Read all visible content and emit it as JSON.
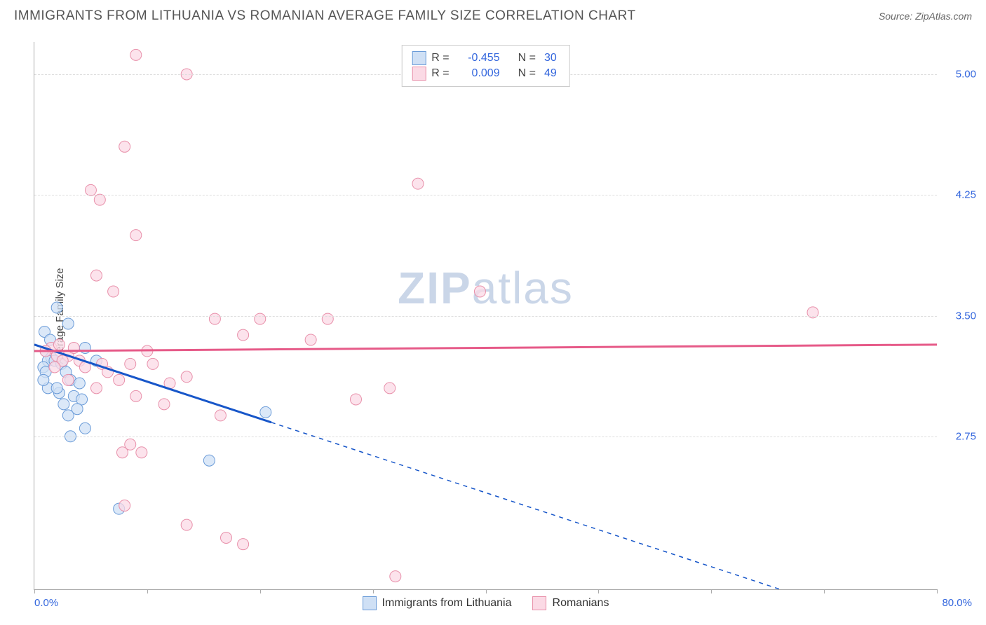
{
  "header": {
    "title": "IMMIGRANTS FROM LITHUANIA VS ROMANIAN AVERAGE FAMILY SIZE CORRELATION CHART",
    "source": "Source: ZipAtlas.com"
  },
  "watermark": {
    "part1": "ZIP",
    "part2": "atlas"
  },
  "chart": {
    "type": "scatter",
    "x_axis": {
      "min_label": "0.0%",
      "max_label": "80.0%",
      "min": 0,
      "max": 80,
      "tick_positions_pct": [
        0,
        12.5,
        25,
        37.5,
        50,
        62.5,
        75,
        87.5,
        100
      ],
      "axis_color": "#aaaaaa"
    },
    "y_axis": {
      "title": "Average Family Size",
      "min": 1.8,
      "max": 5.2,
      "ticks": [
        2.75,
        3.5,
        4.25,
        5.0
      ],
      "label_color": "#3366dd",
      "axis_color": "#aaaaaa",
      "grid_color": "#dddddd"
    },
    "series": [
      {
        "name": "Immigrants from Lithuania",
        "marker_fill": "#cfe0f5",
        "marker_stroke": "#6a9bd8",
        "trend_color": "#1756c9",
        "trend_solid_xmax": 21,
        "trend_y_start": 3.32,
        "trend_y_end_at80": 1.48,
        "r": "-0.455",
        "n": "30",
        "marker_radius": 8,
        "points": [
          [
            2.0,
            3.55
          ],
          [
            3.0,
            3.45
          ],
          [
            4.5,
            3.3
          ],
          [
            1.0,
            3.28
          ],
          [
            1.5,
            3.24
          ],
          [
            1.2,
            3.22
          ],
          [
            1.8,
            3.22
          ],
          [
            2.4,
            3.2
          ],
          [
            0.8,
            3.18
          ],
          [
            1.0,
            3.15
          ],
          [
            2.8,
            3.15
          ],
          [
            3.2,
            3.1
          ],
          [
            4.0,
            3.08
          ],
          [
            1.2,
            3.05
          ],
          [
            2.2,
            3.02
          ],
          [
            3.5,
            3.0
          ],
          [
            4.2,
            2.98
          ],
          [
            2.6,
            2.95
          ],
          [
            3.8,
            2.92
          ],
          [
            0.8,
            3.1
          ],
          [
            2.0,
            3.05
          ],
          [
            20.5,
            2.9
          ],
          [
            3.0,
            2.88
          ],
          [
            4.5,
            2.8
          ],
          [
            3.2,
            2.75
          ],
          [
            15.5,
            2.6
          ],
          [
            7.5,
            2.3
          ],
          [
            0.9,
            3.4
          ],
          [
            1.4,
            3.35
          ],
          [
            5.5,
            3.22
          ]
        ]
      },
      {
        "name": "Romanians",
        "marker_fill": "#fbdae5",
        "marker_stroke": "#e890aa",
        "trend_color": "#e65a88",
        "trend_solid_xmax": 80,
        "trend_y_start": 3.28,
        "trend_y_end_at80": 3.32,
        "r": "0.009",
        "n": "49",
        "marker_radius": 8,
        "points": [
          [
            9.0,
            5.12
          ],
          [
            13.5,
            5.0
          ],
          [
            8.0,
            4.55
          ],
          [
            5.0,
            4.28
          ],
          [
            5.8,
            4.22
          ],
          [
            9.0,
            4.0
          ],
          [
            34.0,
            4.32
          ],
          [
            5.5,
            3.75
          ],
          [
            7.0,
            3.65
          ],
          [
            39.5,
            3.65
          ],
          [
            69.0,
            3.52
          ],
          [
            16.0,
            3.48
          ],
          [
            26.0,
            3.48
          ],
          [
            18.5,
            3.38
          ],
          [
            20.0,
            3.48
          ],
          [
            24.5,
            3.35
          ],
          [
            1.5,
            3.3
          ],
          [
            2.0,
            3.25
          ],
          [
            3.0,
            3.25
          ],
          [
            4.0,
            3.22
          ],
          [
            6.0,
            3.2
          ],
          [
            8.5,
            3.2
          ],
          [
            10.5,
            3.2
          ],
          [
            12.0,
            3.08
          ],
          [
            13.5,
            3.12
          ],
          [
            7.5,
            3.1
          ],
          [
            28.5,
            2.98
          ],
          [
            3.0,
            3.1
          ],
          [
            5.5,
            3.05
          ],
          [
            9.0,
            3.0
          ],
          [
            11.5,
            2.95
          ],
          [
            16.5,
            2.88
          ],
          [
            7.8,
            2.65
          ],
          [
            9.5,
            2.65
          ],
          [
            8.5,
            2.7
          ],
          [
            8.0,
            2.32
          ],
          [
            13.5,
            2.2
          ],
          [
            17.0,
            2.12
          ],
          [
            18.5,
            2.08
          ],
          [
            32.0,
            1.88
          ],
          [
            1.0,
            3.28
          ],
          [
            2.5,
            3.22
          ],
          [
            4.5,
            3.18
          ],
          [
            6.5,
            3.15
          ],
          [
            3.5,
            3.3
          ],
          [
            2.2,
            3.32
          ],
          [
            1.8,
            3.18
          ],
          [
            10.0,
            3.28
          ],
          [
            31.5,
            3.05
          ]
        ]
      }
    ],
    "legend_top": {
      "r_label": "R =",
      "n_label": "N ="
    },
    "legend_bottom": {
      "items": [
        "Immigrants from Lithuania",
        "Romanians"
      ]
    },
    "background_color": "#ffffff"
  }
}
